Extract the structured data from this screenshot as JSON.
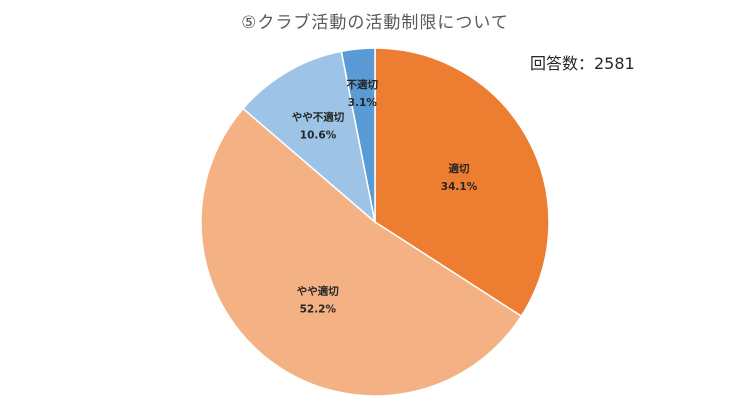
{
  "chart_data": {
    "type": "pie",
    "title": "⑤クラブ活動の活動制限について",
    "annotation": "回答数：2581",
    "start": "12 o'clock",
    "direction": "clockwise",
    "slices": [
      {
        "label": "適切",
        "value": 34.1,
        "percent_label": "34.1%",
        "color": "#ED7D31"
      },
      {
        "label": "やや適切",
        "value": 52.2,
        "percent_label": "52.2%",
        "color": "#F4B183"
      },
      {
        "label": "やや不適切",
        "value": 10.6,
        "percent_label": "10.6%",
        "color": "#9DC3E6"
      },
      {
        "label": "不適切",
        "value": 3.1,
        "percent_label": "3.1%",
        "color": "#5B9BD5"
      }
    ]
  }
}
